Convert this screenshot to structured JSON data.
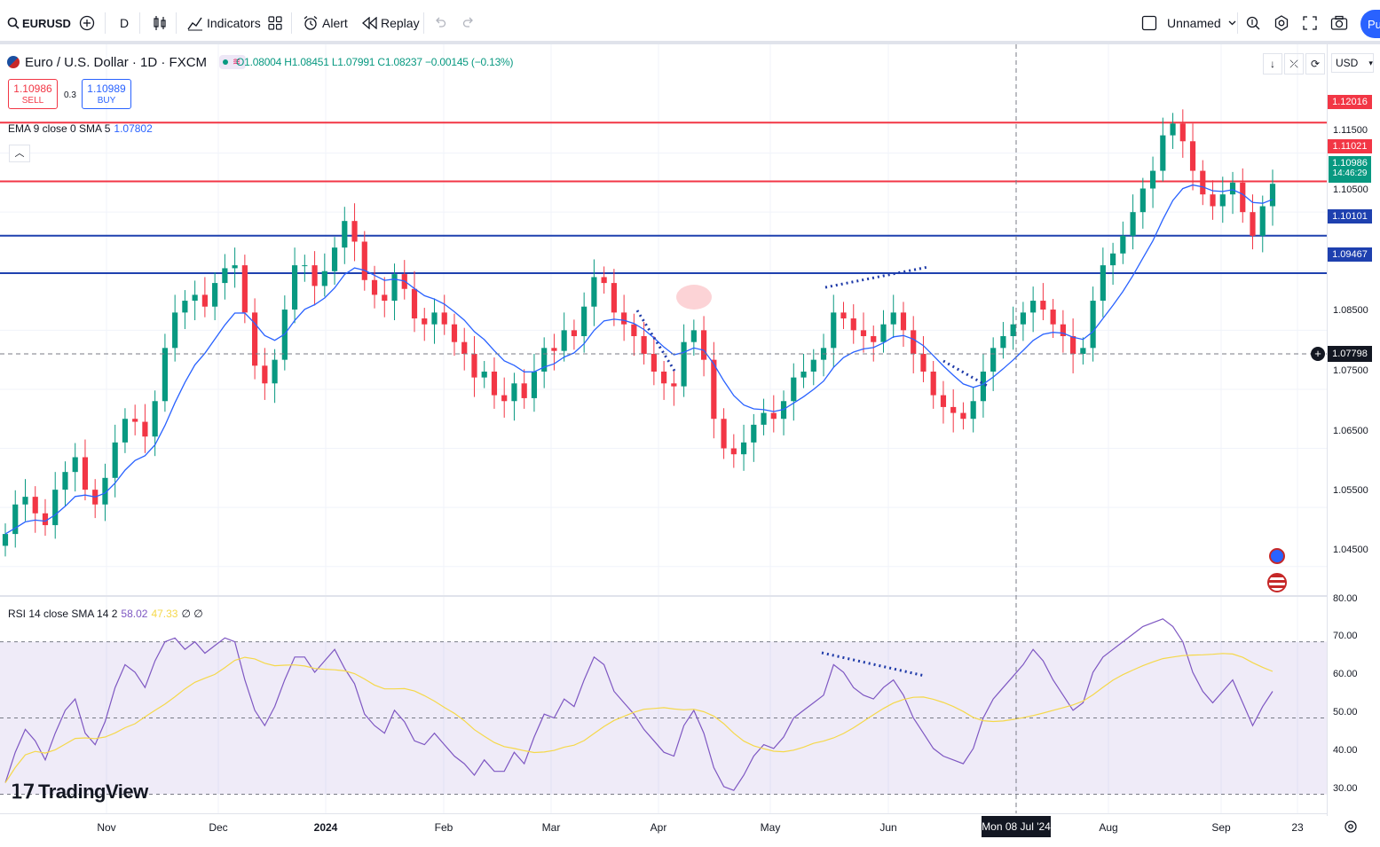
{
  "toolbar": {
    "symbol": "EURUSD",
    "interval": "D",
    "indicators_label": "Indicators",
    "alert_label": "Alert",
    "replay_label": "Replay",
    "layout_name": "Unnamed",
    "publish_label": "Pu"
  },
  "legend": {
    "title": "Euro / U.S. Dollar · 1D · FXCM",
    "ohlc": "O1.08004 H1.08451 L1.07991 C1.08237 −0.00145 (−0.13%)"
  },
  "trade": {
    "sell_price": "1.10986",
    "sell_label": "SELL",
    "spread": "0.3",
    "buy_price": "1.10989",
    "buy_label": "BUY"
  },
  "ema_legend": {
    "label": "EMA 9 close 0 SMA 5",
    "value": "1.07802"
  },
  "rsi_legend": {
    "label": "RSI 14 close SMA 14 2",
    "value1": "58.02",
    "value2": "47.33",
    "extra": "∅ ∅"
  },
  "price_axis": {
    "currency": "USD",
    "ticks": [
      "1.11500",
      "1.10500",
      "1.08500",
      "1.07500",
      "1.06500",
      "1.05500",
      "1.04500"
    ],
    "labels": {
      "line_high": "1.12016",
      "line_mid": "1.11021",
      "last_price": "1.10986",
      "countdown": "14:46:29",
      "line_blue1": "1.10101",
      "line_blue2": "1.09467",
      "crosshair": "1.07798"
    },
    "rsi_ticks": [
      "80.00",
      "70.00",
      "60.00",
      "50.00",
      "40.00",
      "30.00"
    ]
  },
  "time_axis": {
    "ticks": [
      "Nov",
      "Dec",
      "2024",
      "Feb",
      "Mar",
      "Apr",
      "May",
      "Jun",
      "Aug",
      "Sep",
      "23"
    ],
    "crosshair_date": "Mon 08 Jul '24"
  },
  "branding": {
    "logo_text": "TradingView"
  },
  "colors": {
    "up": "#089981",
    "down": "#f23645",
    "ema": "#2962ff",
    "rsi": "#7e57c2",
    "rsi_ma": "#f5d84a",
    "hline_red": "#f23645",
    "hline_blue": "#1e40af"
  },
  "chart_data": {
    "type": "candlestick",
    "title": "Euro / U.S. Dollar · 1D · FXCM",
    "ylim": [
      1.04,
      1.125
    ],
    "price_levels": [
      1.12016,
      1.11021,
      1.10101,
      1.09467
    ],
    "close_series": [
      1.0505,
      1.0555,
      1.0568,
      1.054,
      1.052,
      1.058,
      1.061,
      1.0635,
      1.058,
      1.0555,
      1.06,
      1.066,
      1.07,
      1.0695,
      1.067,
      1.073,
      1.082,
      1.088,
      1.09,
      1.091,
      1.089,
      1.093,
      1.0955,
      1.096,
      1.088,
      1.079,
      1.076,
      1.08,
      1.0885,
      1.096,
      1.096,
      1.0925,
      1.095,
      1.099,
      1.1035,
      1.1,
      1.0935,
      1.091,
      1.09,
      1.0945,
      1.092,
      1.087,
      1.086,
      1.088,
      1.086,
      1.083,
      1.081,
      1.077,
      1.078,
      1.074,
      1.073,
      1.076,
      1.0735,
      1.078,
      1.082,
      1.0815,
      1.085,
      1.084,
      1.089,
      1.094,
      1.093,
      1.088,
      1.086,
      1.084,
      1.081,
      1.078,
      1.076,
      1.0755,
      1.083,
      1.085,
      1.08,
      1.07,
      1.065,
      1.064,
      1.066,
      1.069,
      1.071,
      1.07,
      1.073,
      1.077,
      1.078,
      1.08,
      1.082,
      1.088,
      1.087,
      1.085,
      1.084,
      1.083,
      1.086,
      1.088,
      1.085,
      1.081,
      1.078,
      1.074,
      1.072,
      1.071,
      1.07,
      1.073,
      1.078,
      1.082,
      1.084,
      1.086,
      1.088,
      1.09,
      1.0885,
      1.086,
      1.084,
      1.081,
      1.082,
      1.09,
      1.096,
      1.098,
      1.101,
      1.105,
      1.109,
      1.112,
      1.118,
      1.12,
      1.117,
      1.112,
      1.108,
      1.106,
      1.108,
      1.11,
      1.105,
      1.101,
      1.106,
      1.1098
    ],
    "rsi_ylim": [
      25,
      82
    ],
    "rsi_levels": [
      70,
      50,
      30
    ],
    "rsi_series": [
      33,
      41,
      47,
      44,
      39,
      46,
      52,
      55,
      46,
      43,
      49,
      58,
      64,
      62,
      58,
      65,
      70,
      71,
      68,
      70,
      67,
      69,
      71,
      70,
      60,
      52,
      48,
      53,
      60,
      66,
      66,
      62,
      65,
      68,
      63,
      59,
      51,
      48,
      46,
      52,
      49,
      44,
      43,
      46,
      43,
      40,
      38,
      35,
      39,
      36,
      36,
      41,
      38,
      45,
      51,
      50,
      55,
      53,
      60,
      66,
      64,
      57,
      54,
      51,
      47,
      44,
      41,
      40,
      48,
      52,
      46,
      37,
      32,
      31,
      35,
      40,
      43,
      42,
      45,
      50,
      52,
      54,
      56,
      64,
      62,
      58,
      56,
      55,
      58,
      60,
      56,
      50,
      46,
      42,
      40,
      39,
      38,
      42,
      50,
      55,
      58,
      61,
      64,
      68,
      65,
      60,
      56,
      52,
      54,
      62,
      66,
      68,
      70,
      72,
      74,
      75,
      76,
      74,
      70,
      62,
      57,
      54,
      57,
      60,
      54,
      48,
      53,
      57
    ]
  }
}
